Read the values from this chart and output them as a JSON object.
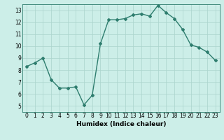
{
  "x": [
    0,
    1,
    2,
    3,
    4,
    5,
    6,
    7,
    8,
    9,
    10,
    11,
    12,
    13,
    14,
    15,
    16,
    17,
    18,
    19,
    20,
    21,
    22,
    23
  ],
  "y": [
    8.3,
    8.6,
    9.0,
    7.2,
    6.5,
    6.5,
    6.6,
    5.1,
    5.9,
    10.2,
    12.2,
    12.2,
    12.3,
    12.6,
    12.7,
    12.5,
    13.4,
    12.8,
    12.3,
    11.4,
    10.1,
    9.9,
    9.5,
    8.8
  ],
  "line_color": "#2e7d6e",
  "marker": "D",
  "markersize": 2,
  "linewidth": 1.0,
  "background_color": "#cceee8",
  "grid_color": "#aad4cc",
  "xlabel": "Humidex (Indice chaleur)",
  "ylabel": "",
  "xlim": [
    -0.5,
    23.5
  ],
  "ylim": [
    4.5,
    13.5
  ],
  "yticks": [
    5,
    6,
    7,
    8,
    9,
    10,
    11,
    12,
    13
  ],
  "xticks": [
    0,
    1,
    2,
    3,
    4,
    5,
    6,
    7,
    8,
    9,
    10,
    11,
    12,
    13,
    14,
    15,
    16,
    17,
    18,
    19,
    20,
    21,
    22,
    23
  ],
  "xlabel_fontsize": 6.5,
  "tick_fontsize": 5.5,
  "spine_color": "#2e7d6e"
}
